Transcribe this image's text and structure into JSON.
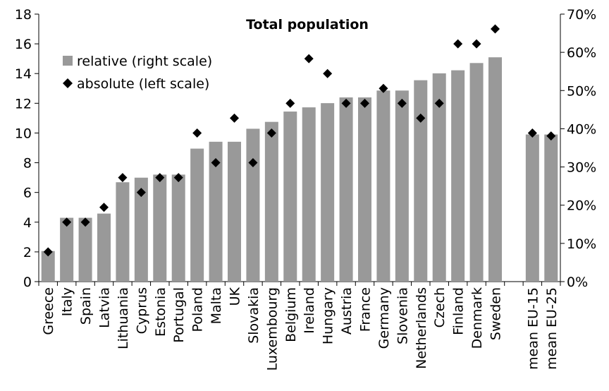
{
  "chart_data": {
    "type": "bar",
    "title": "Total population",
    "categories": [
      "Greece",
      "Italy",
      "Spain",
      "Latvia",
      "Lithuania",
      "Cyprus",
      "Estonia",
      "Portugal",
      "Poland",
      "Malta",
      "UK",
      "Slovakia",
      "Luxembourg",
      "Belgium",
      "Ireland",
      "Hungary",
      "Austria",
      "France",
      "Germany",
      "Slovenia",
      "Netherlands",
      "Czech",
      "Finland",
      "Denmark",
      "Sweden",
      "",
      "mean EU-15",
      "mean EU-25"
    ],
    "series": [
      {
        "name": "relative (right scale)",
        "type": "bar",
        "axis": "right",
        "color": "#999999",
        "values": [
          0.08,
          0.167,
          0.167,
          0.178,
          0.26,
          0.272,
          0.28,
          0.28,
          0.348,
          0.366,
          0.366,
          0.4,
          0.418,
          0.445,
          0.456,
          0.467,
          0.482,
          0.482,
          0.5,
          0.5,
          0.527,
          0.545,
          0.553,
          0.572,
          0.587,
          null,
          0.385,
          0.385
        ]
      },
      {
        "name": "absolute (left scale)",
        "type": "scatter",
        "marker": "diamond",
        "axis": "left",
        "color": "#000000",
        "values": [
          2.0,
          4.0,
          4.0,
          5.0,
          7.0,
          6.0,
          7.0,
          7.0,
          10.0,
          8.0,
          11.0,
          8.0,
          10.0,
          12.0,
          15.0,
          14.0,
          12.0,
          12.0,
          13.0,
          12.0,
          11.0,
          12.0,
          16.0,
          16.0,
          17.0,
          null,
          10.0,
          9.8
        ]
      }
    ],
    "left_axis": {
      "min": 0,
      "max": 18,
      "step": 2,
      "ticks": [
        "0",
        "2",
        "4",
        "6",
        "8",
        "10",
        "12",
        "14",
        "16",
        "18"
      ]
    },
    "right_axis": {
      "min": 0,
      "max": 0.7,
      "step": 0.1,
      "ticks": [
        "0%",
        "10%",
        "20%",
        "30%",
        "40%",
        "50%",
        "60%",
        "70%"
      ]
    },
    "legend_position": "top-left",
    "grid": false
  }
}
